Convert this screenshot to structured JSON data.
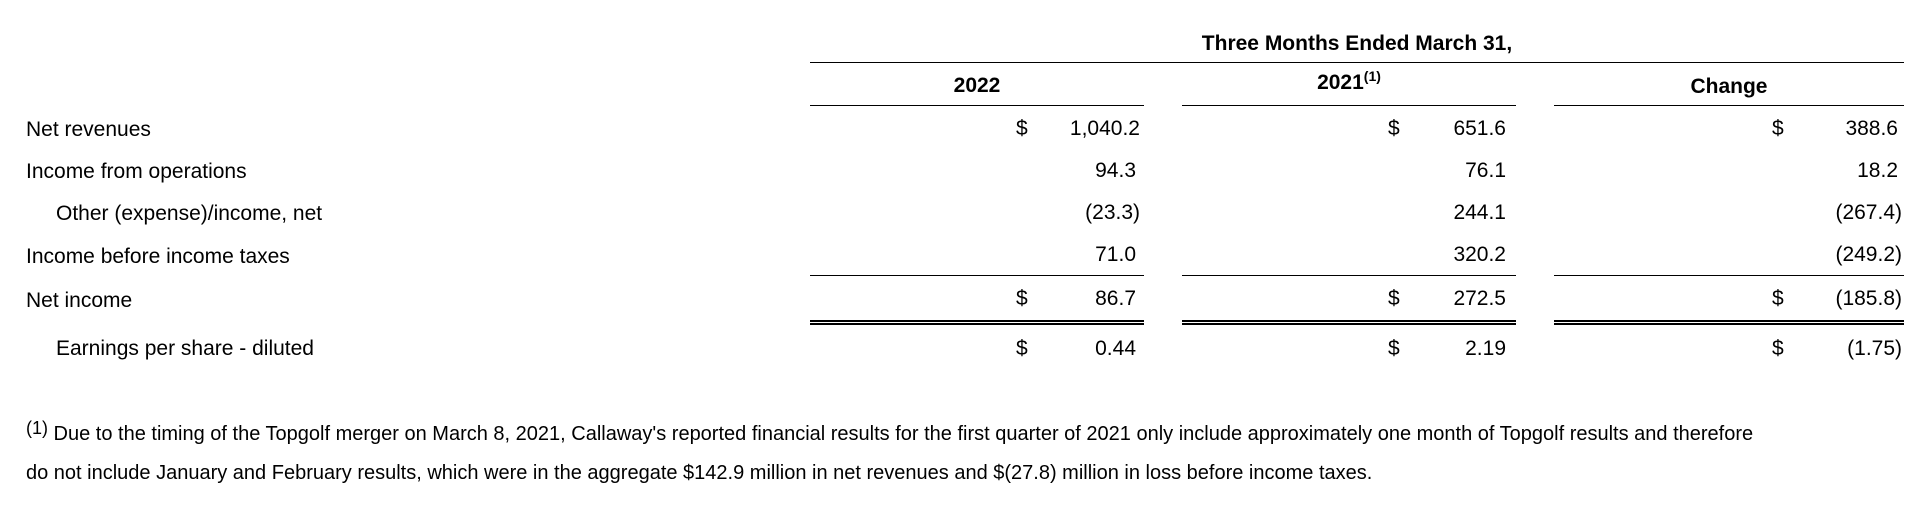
{
  "header": {
    "period_title": "Three Months Ended March 31,",
    "columns": [
      {
        "label": "2022",
        "superscript": ""
      },
      {
        "label": "2021",
        "superscript": "(1)"
      },
      {
        "label": "Change",
        "superscript": ""
      }
    ]
  },
  "rows": [
    {
      "label": "Net revenues",
      "values": [
        {
          "dollar": "$",
          "value": "1,040.2"
        },
        {
          "dollar": "$",
          "value": "651.6"
        },
        {
          "dollar": "$",
          "value": "388.6"
        }
      ]
    },
    {
      "label": "Income from operations",
      "values": [
        {
          "dollar": "",
          "value": "94.3"
        },
        {
          "dollar": "",
          "value": "76.1"
        },
        {
          "dollar": "",
          "value": "18.2"
        }
      ]
    },
    {
      "label": "Other (expense)/income, net",
      "values": [
        {
          "dollar": "",
          "value": "(23.3)"
        },
        {
          "dollar": "",
          "value": "244.1"
        },
        {
          "dollar": "",
          "value": "(267.4)"
        }
      ]
    },
    {
      "label": "Income before income taxes",
      "values": [
        {
          "dollar": "",
          "value": "71.0"
        },
        {
          "dollar": "",
          "value": "320.2"
        },
        {
          "dollar": "",
          "value": "(249.2)"
        }
      ]
    },
    {
      "label": "Net income",
      "values": [
        {
          "dollar": "$",
          "value": "86.7"
        },
        {
          "dollar": "$",
          "value": "272.5"
        },
        {
          "dollar": "$",
          "value": "(185.8)"
        }
      ]
    },
    {
      "label": "Earnings per share - diluted",
      "values": [
        {
          "dollar": "$",
          "value": "0.44"
        },
        {
          "dollar": "$",
          "value": "2.19"
        },
        {
          "dollar": "$",
          "value": "(1.75)"
        }
      ]
    }
  ],
  "footnote": {
    "marker": "(1)",
    "line1": " Due to the timing of the Topgolf merger on March 8, 2021, Callaway's reported financial results for the first quarter of 2021 only include approximately one month of Topgolf results and therefore",
    "line2": "do not include January and February results, which were in the aggregate $142.9 million in net revenues and $(27.8) million in loss before income taxes."
  }
}
